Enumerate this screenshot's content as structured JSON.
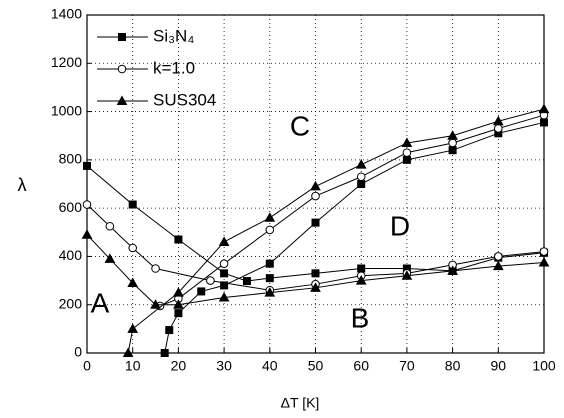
{
  "chart_data": {
    "type": "line",
    "x_label": "ΔT [K]",
    "y_label": "λ",
    "xlim": [
      0,
      100
    ],
    "xticks": [
      0,
      10,
      20,
      30,
      40,
      50,
      60,
      70,
      80,
      90,
      100
    ],
    "ylim": [
      0,
      1400
    ],
    "yticks": [
      0,
      200,
      400,
      600,
      800,
      1000,
      1200,
      1400
    ],
    "grid": true,
    "annotations": [
      "A",
      "B",
      "C",
      "D"
    ],
    "series": [
      {
        "name": "Si₃N₄",
        "color": "#000000",
        "marker": "square",
        "filled": true,
        "x": [
          0,
          10,
          20,
          30,
          35,
          40,
          50,
          60,
          70,
          80,
          90,
          100,
          null,
          17,
          18,
          20,
          25,
          30,
          40,
          50,
          60,
          70,
          80,
          90,
          100
        ],
        "values": [
          775,
          615,
          470,
          330,
          298,
          310,
          330,
          350,
          350,
          340,
          395,
          415,
          null,
          0,
          95,
          165,
          255,
          280,
          370,
          540,
          700,
          800,
          840,
          910,
          955
        ]
      },
      {
        "name": "k=1.0",
        "color": "#000000",
        "marker": "circle",
        "filled": false,
        "x": [
          0,
          5,
          10,
          15,
          27,
          40,
          50,
          60,
          70,
          80,
          90,
          100,
          null,
          16,
          20,
          30,
          40,
          50,
          60,
          70,
          80,
          90,
          100
        ],
        "values": [
          615,
          525,
          435,
          350,
          300,
          260,
          285,
          320,
          330,
          365,
          400,
          420,
          null,
          195,
          225,
          370,
          510,
          650,
          730,
          830,
          870,
          930,
          985
        ]
      },
      {
        "name": "SUS304",
        "color": "#000000",
        "marker": "triangle",
        "filled": true,
        "x": [
          0,
          5,
          10,
          15,
          20,
          30,
          40,
          50,
          60,
          70,
          80,
          90,
          100,
          null,
          9,
          10,
          20,
          30,
          40,
          50,
          60,
          70,
          80,
          90,
          100
        ],
        "values": [
          490,
          390,
          290,
          200,
          200,
          230,
          250,
          270,
          300,
          320,
          340,
          360,
          375,
          null,
          0,
          100,
          250,
          460,
          560,
          690,
          780,
          870,
          900,
          960,
          1010
        ]
      }
    ]
  }
}
